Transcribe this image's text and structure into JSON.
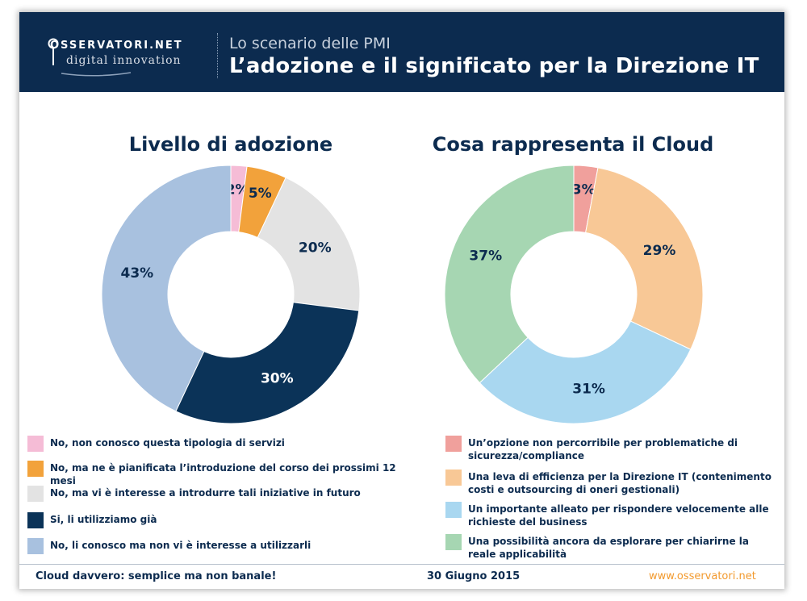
{
  "header": {
    "logo_name": "OSSERVATORI.NET",
    "logo_tagline": "digital innovation",
    "subtitle": "Lo scenario delle PMI",
    "title": "L’adozione e il significato per la Direzione IT"
  },
  "colors": {
    "header_bg": "#0c2b4f",
    "title_text": "#0c2b4f",
    "footer_accent": "#f29a2e"
  },
  "chart_data": [
    {
      "type": "pie",
      "title": "Livello di adozione",
      "legend_position": "bottom",
      "slices": [
        {
          "label": "No, non conosco questa tipologia di servizi",
          "value": 2,
          "display": "2%",
          "color": "#f5bcd6",
          "text_color": "#0c2b4f"
        },
        {
          "label": "No, ma ne è pianificata l’introduzione del corso dei prossimi 12 mesi",
          "value": 5,
          "display": "5%",
          "color": "#f2a23b",
          "text_color": "#0c2b4f"
        },
        {
          "label": "No, ma vi è interesse a introdurre tali iniziative in futuro",
          "value": 20,
          "display": "20%",
          "color": "#e3e3e3",
          "text_color": "#0c2b4f"
        },
        {
          "label": "Si, li utilizziamo già",
          "value": 30,
          "display": "30%",
          "color": "#0b3358",
          "text_color": "#ffffff"
        },
        {
          "label": "No, li conosco ma non vi è interesse a utilizzarli",
          "value": 43,
          "display": "43%",
          "color": "#a8c1df",
          "text_color": "#0c2b4f"
        }
      ]
    },
    {
      "type": "pie",
      "title": "Cosa rappresenta il Cloud",
      "legend_position": "bottom",
      "slices": [
        {
          "label": "Un’opzione non percorribile per problematiche di sicurezza/compliance",
          "value": 3,
          "display": "3%",
          "color": "#f0a09c",
          "text_color": "#0c2b4f"
        },
        {
          "label": "Una leva di efficienza per la Direzione IT (contenimento costi e outsourcing di oneri gestionali)",
          "value": 29,
          "display": "29%",
          "color": "#f8c896",
          "text_color": "#0c2b4f"
        },
        {
          "label": "Un importante alleato per rispondere velocemente alle richieste del business",
          "value": 31,
          "display": "31%",
          "color": "#a9d7f0",
          "text_color": "#0c2b4f"
        },
        {
          "label": "Una possibilità ancora da esplorare per chiarirne la reale applicabilità",
          "value": 37,
          "display": "37%",
          "color": "#a6d6b2",
          "text_color": "#0c2b4f"
        }
      ]
    }
  ],
  "footer": {
    "left": "Cloud davvero: semplice ma non banale!",
    "center": "30 Giugno 2015",
    "right": "www.osservatori.net"
  }
}
